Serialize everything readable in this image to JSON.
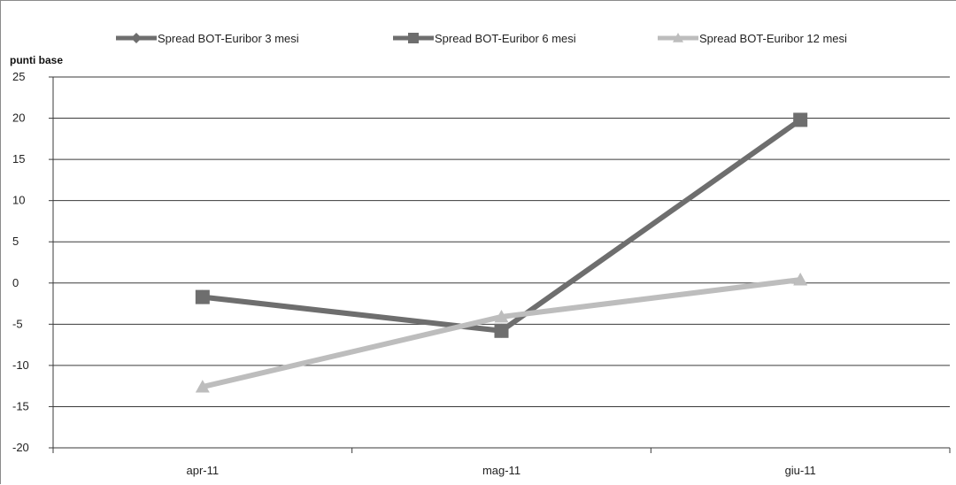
{
  "chart_data": {
    "type": "line",
    "ylabel": "punti base",
    "categories": [
      "apr-11",
      "mag-11",
      "giu-11"
    ],
    "ylim": [
      -20,
      25
    ],
    "yticks": [
      25,
      20,
      15,
      10,
      5,
      0,
      -5,
      -10,
      -15,
      -20
    ],
    "grid": true,
    "legend_position": "top",
    "series": [
      {
        "name": "Spread BOT-Euribor 3 mesi",
        "values": [
          -1.7,
          -5.8,
          19.8
        ],
        "color": "#6e6e6e",
        "marker": "diamond",
        "draw_line": false
      },
      {
        "name": "Spread BOT-Euribor 6 mesi",
        "values": [
          -1.7,
          -5.8,
          19.8
        ],
        "color": "#6e6e6e",
        "marker": "square",
        "draw_line": true
      },
      {
        "name": "Spread BOT-Euribor 12 mesi",
        "values": [
          -12.6,
          -4.1,
          0.4
        ],
        "color": "#bdbdbd",
        "marker": "triangle",
        "draw_line": true
      }
    ]
  }
}
